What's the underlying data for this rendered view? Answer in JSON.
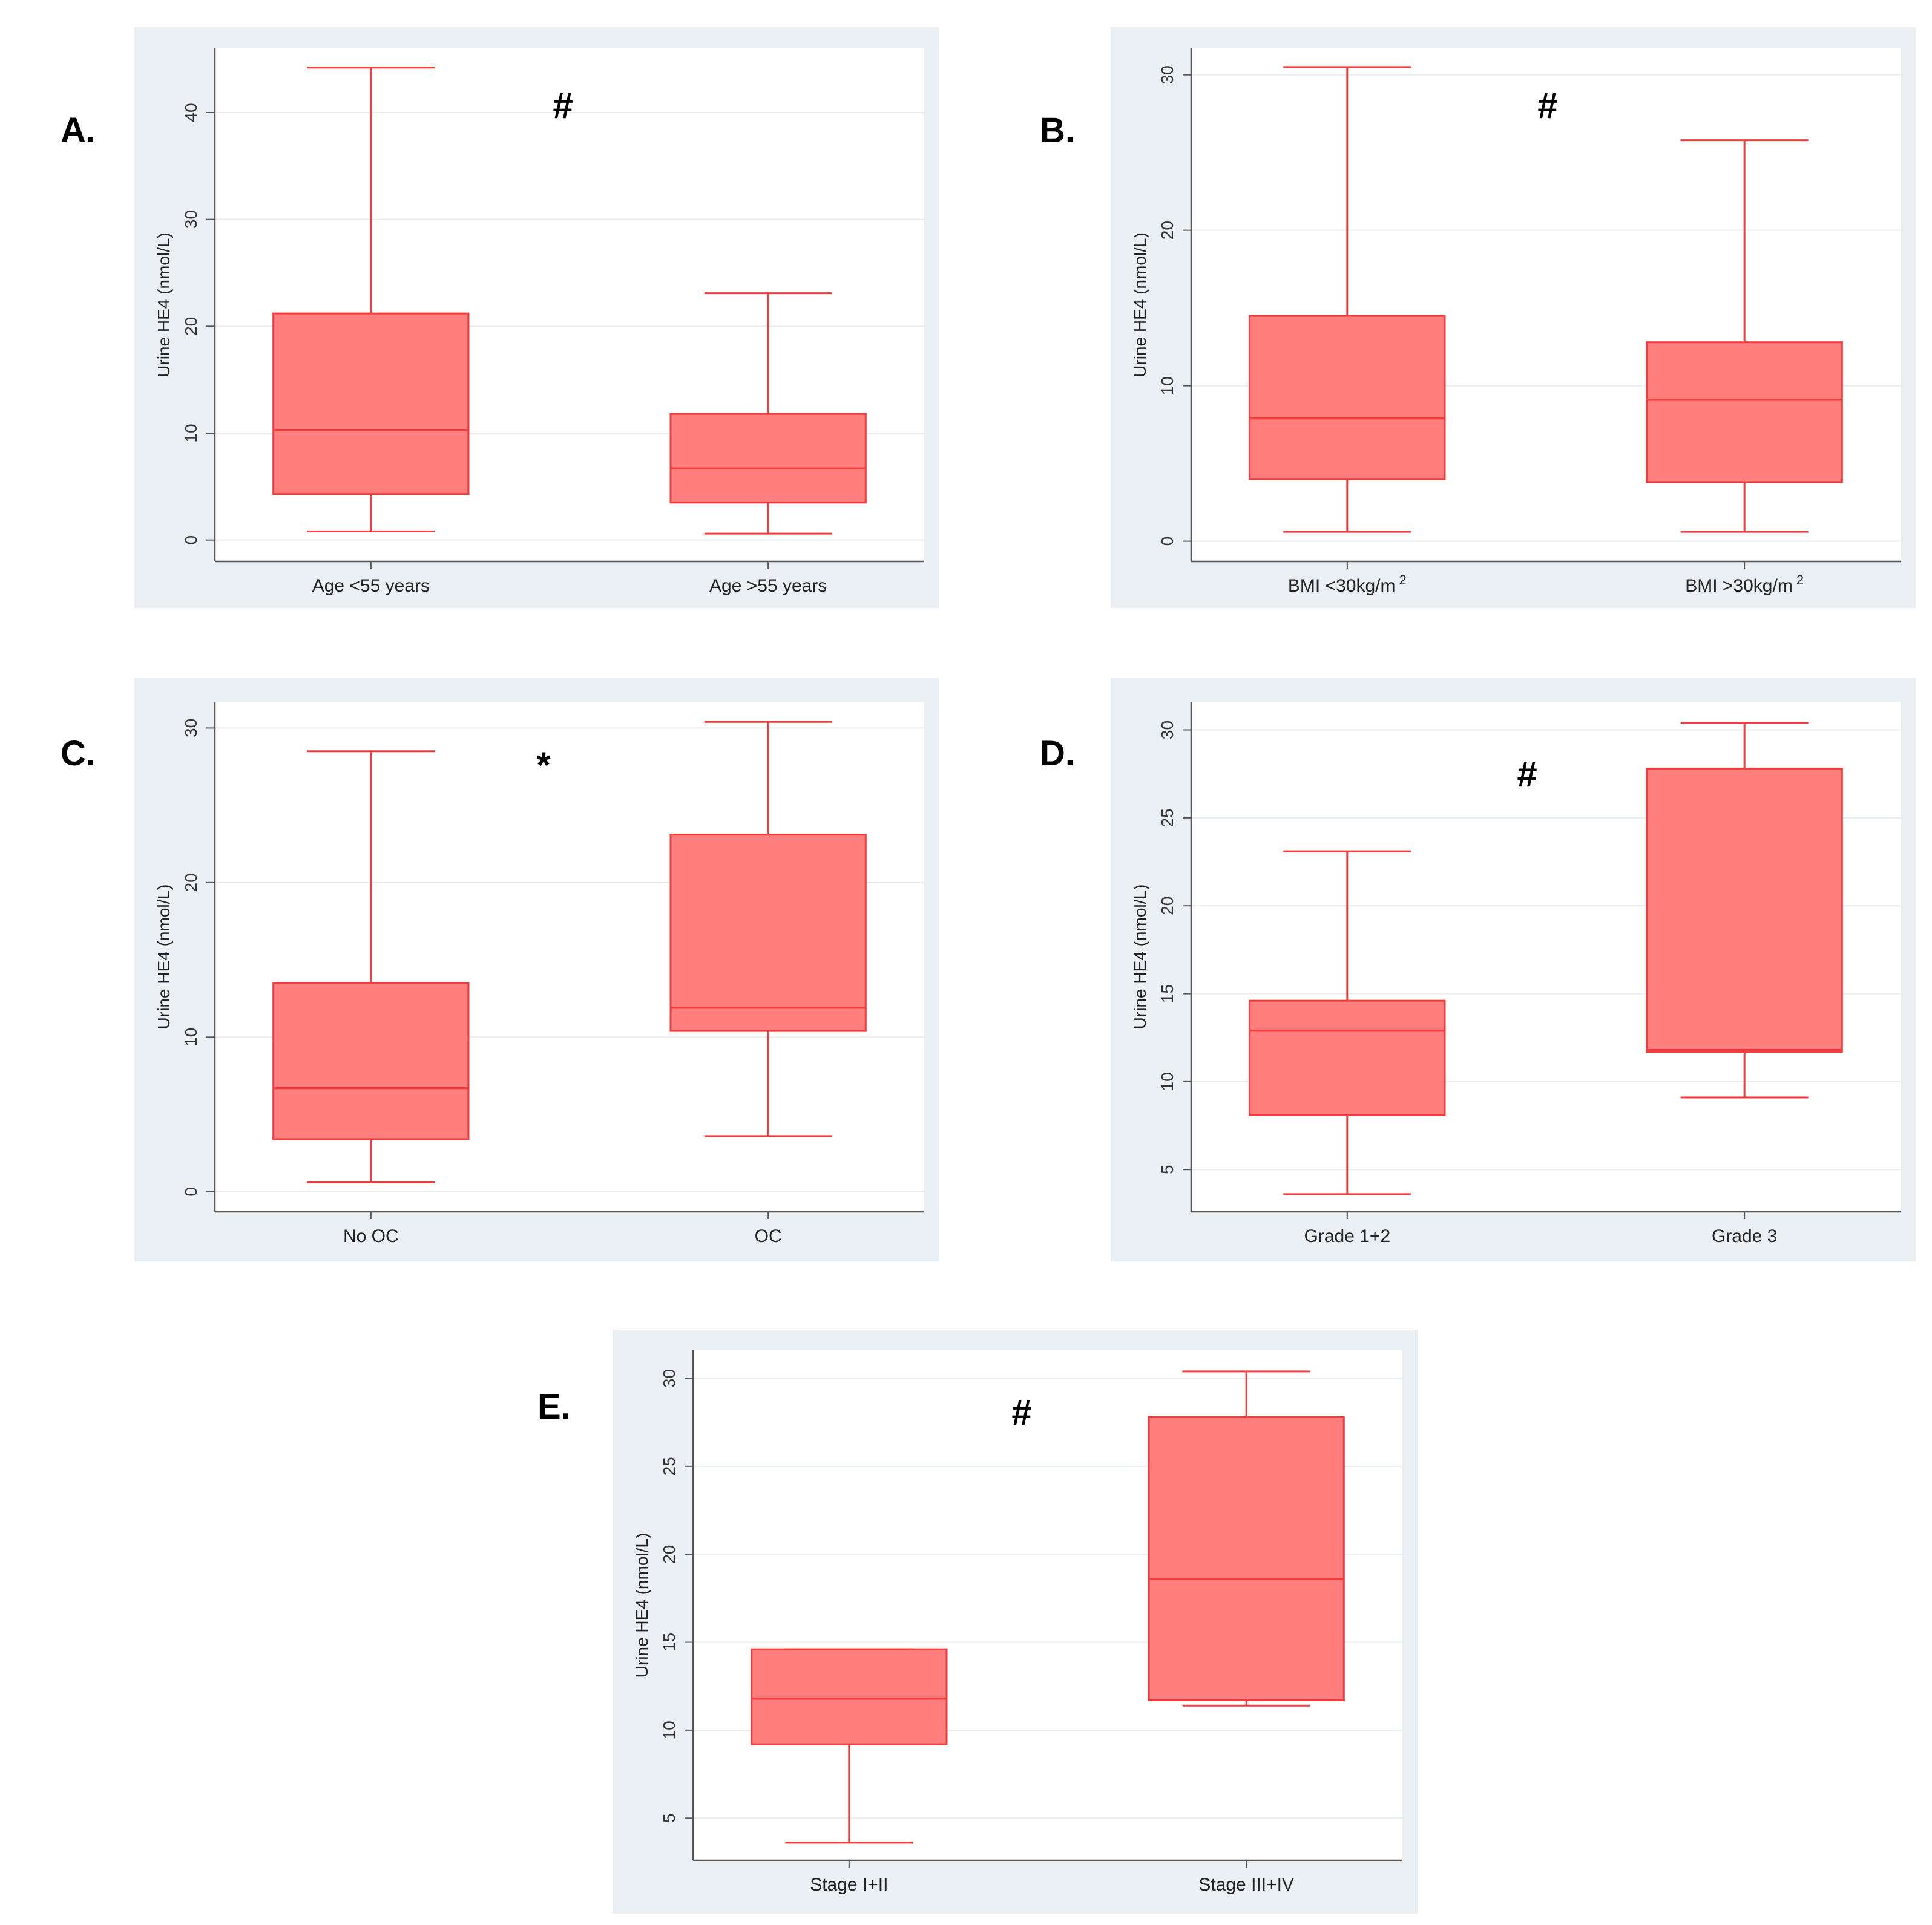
{
  "colors": {
    "frame": "#e9eff3",
    "plot_bg": "#ffffff",
    "grid": "#e6ecf0",
    "axis": "#555555",
    "box_fill": "#ff7f7f",
    "box_line": "#f03c3c"
  },
  "chart_data": [
    {
      "id": "A",
      "type": "box",
      "panel_label": "A.",
      "significance": "#",
      "ylabel": "Urine HE4 (nmol/L)",
      "ylim": [
        -2,
        46
      ],
      "yticks": [
        0,
        10,
        20,
        30,
        40
      ],
      "categories": [
        {
          "label": "Age <55 years",
          "label_sup": "",
          "min": 0.8,
          "q1": 4.3,
          "median": 10.3,
          "q3": 21.2,
          "max": 44.2
        },
        {
          "label": "Age >55 years",
          "label_sup": "",
          "min": 0.6,
          "q1": 3.5,
          "median": 6.7,
          "q3": 11.8,
          "max": 23.1
        }
      ]
    },
    {
      "id": "B",
      "type": "box",
      "panel_label": "B.",
      "significance": "#",
      "ylabel": "Urine HE4 (nmol/L)",
      "ylim": [
        -1.3,
        31.7
      ],
      "yticks": [
        0,
        10,
        20,
        30
      ],
      "categories": [
        {
          "label": "BMI <30kg/m",
          "label_sup": "2",
          "min": 0.6,
          "q1": 4.0,
          "median": 7.9,
          "q3": 14.5,
          "max": 30.5
        },
        {
          "label": "BMI >30kg/m",
          "label_sup": "2",
          "min": 0.6,
          "q1": 3.8,
          "median": 9.1,
          "q3": 12.8,
          "max": 25.8
        }
      ]
    },
    {
      "id": "C",
      "type": "box",
      "panel_label": "C.",
      "significance": "*",
      "ylabel": "Urine HE4 (nmol/L)",
      "ylim": [
        -1.3,
        31.7
      ],
      "yticks": [
        0,
        10,
        20,
        30
      ],
      "categories": [
        {
          "label": "No OC",
          "label_sup": "",
          "min": 0.6,
          "q1": 3.4,
          "median": 6.7,
          "q3": 13.5,
          "max": 28.5
        },
        {
          "label": "OC",
          "label_sup": "",
          "min": 3.6,
          "q1": 10.4,
          "median": 11.9,
          "q3": 23.1,
          "max": 30.4
        }
      ]
    },
    {
      "id": "D",
      "type": "box",
      "panel_label": "D.",
      "significance": "#",
      "ylabel": "Urine HE4 (nmol/L)",
      "ylim": [
        2.6,
        31.6
      ],
      "yticks": [
        5,
        10,
        15,
        20,
        25,
        30
      ],
      "categories": [
        {
          "label": "Grade 1+2",
          "label_sup": "",
          "min": 3.6,
          "q1": 8.1,
          "median": 12.9,
          "q3": 14.6,
          "max": 23.1
        },
        {
          "label": "Grade 3",
          "label_sup": "",
          "min": 9.1,
          "q1": 11.7,
          "median": 11.8,
          "q3": 27.8,
          "max": 30.4
        }
      ]
    },
    {
      "id": "E",
      "type": "box",
      "panel_label": "E.",
      "significance": "#",
      "ylabel": "Urine HE4 (nmol/L)",
      "ylim": [
        2.6,
        31.6
      ],
      "yticks": [
        5,
        10,
        15,
        20,
        25,
        30
      ],
      "categories": [
        {
          "label": "Stage I+II",
          "label_sup": "",
          "min": 3.6,
          "q1": 9.2,
          "median": 11.8,
          "q3": 14.6,
          "max": 14.6
        },
        {
          "label": "Stage III+IV",
          "label_sup": "",
          "min": 11.4,
          "q1": 11.7,
          "median": 18.6,
          "q3": 27.8,
          "max": 30.4
        }
      ]
    }
  ]
}
